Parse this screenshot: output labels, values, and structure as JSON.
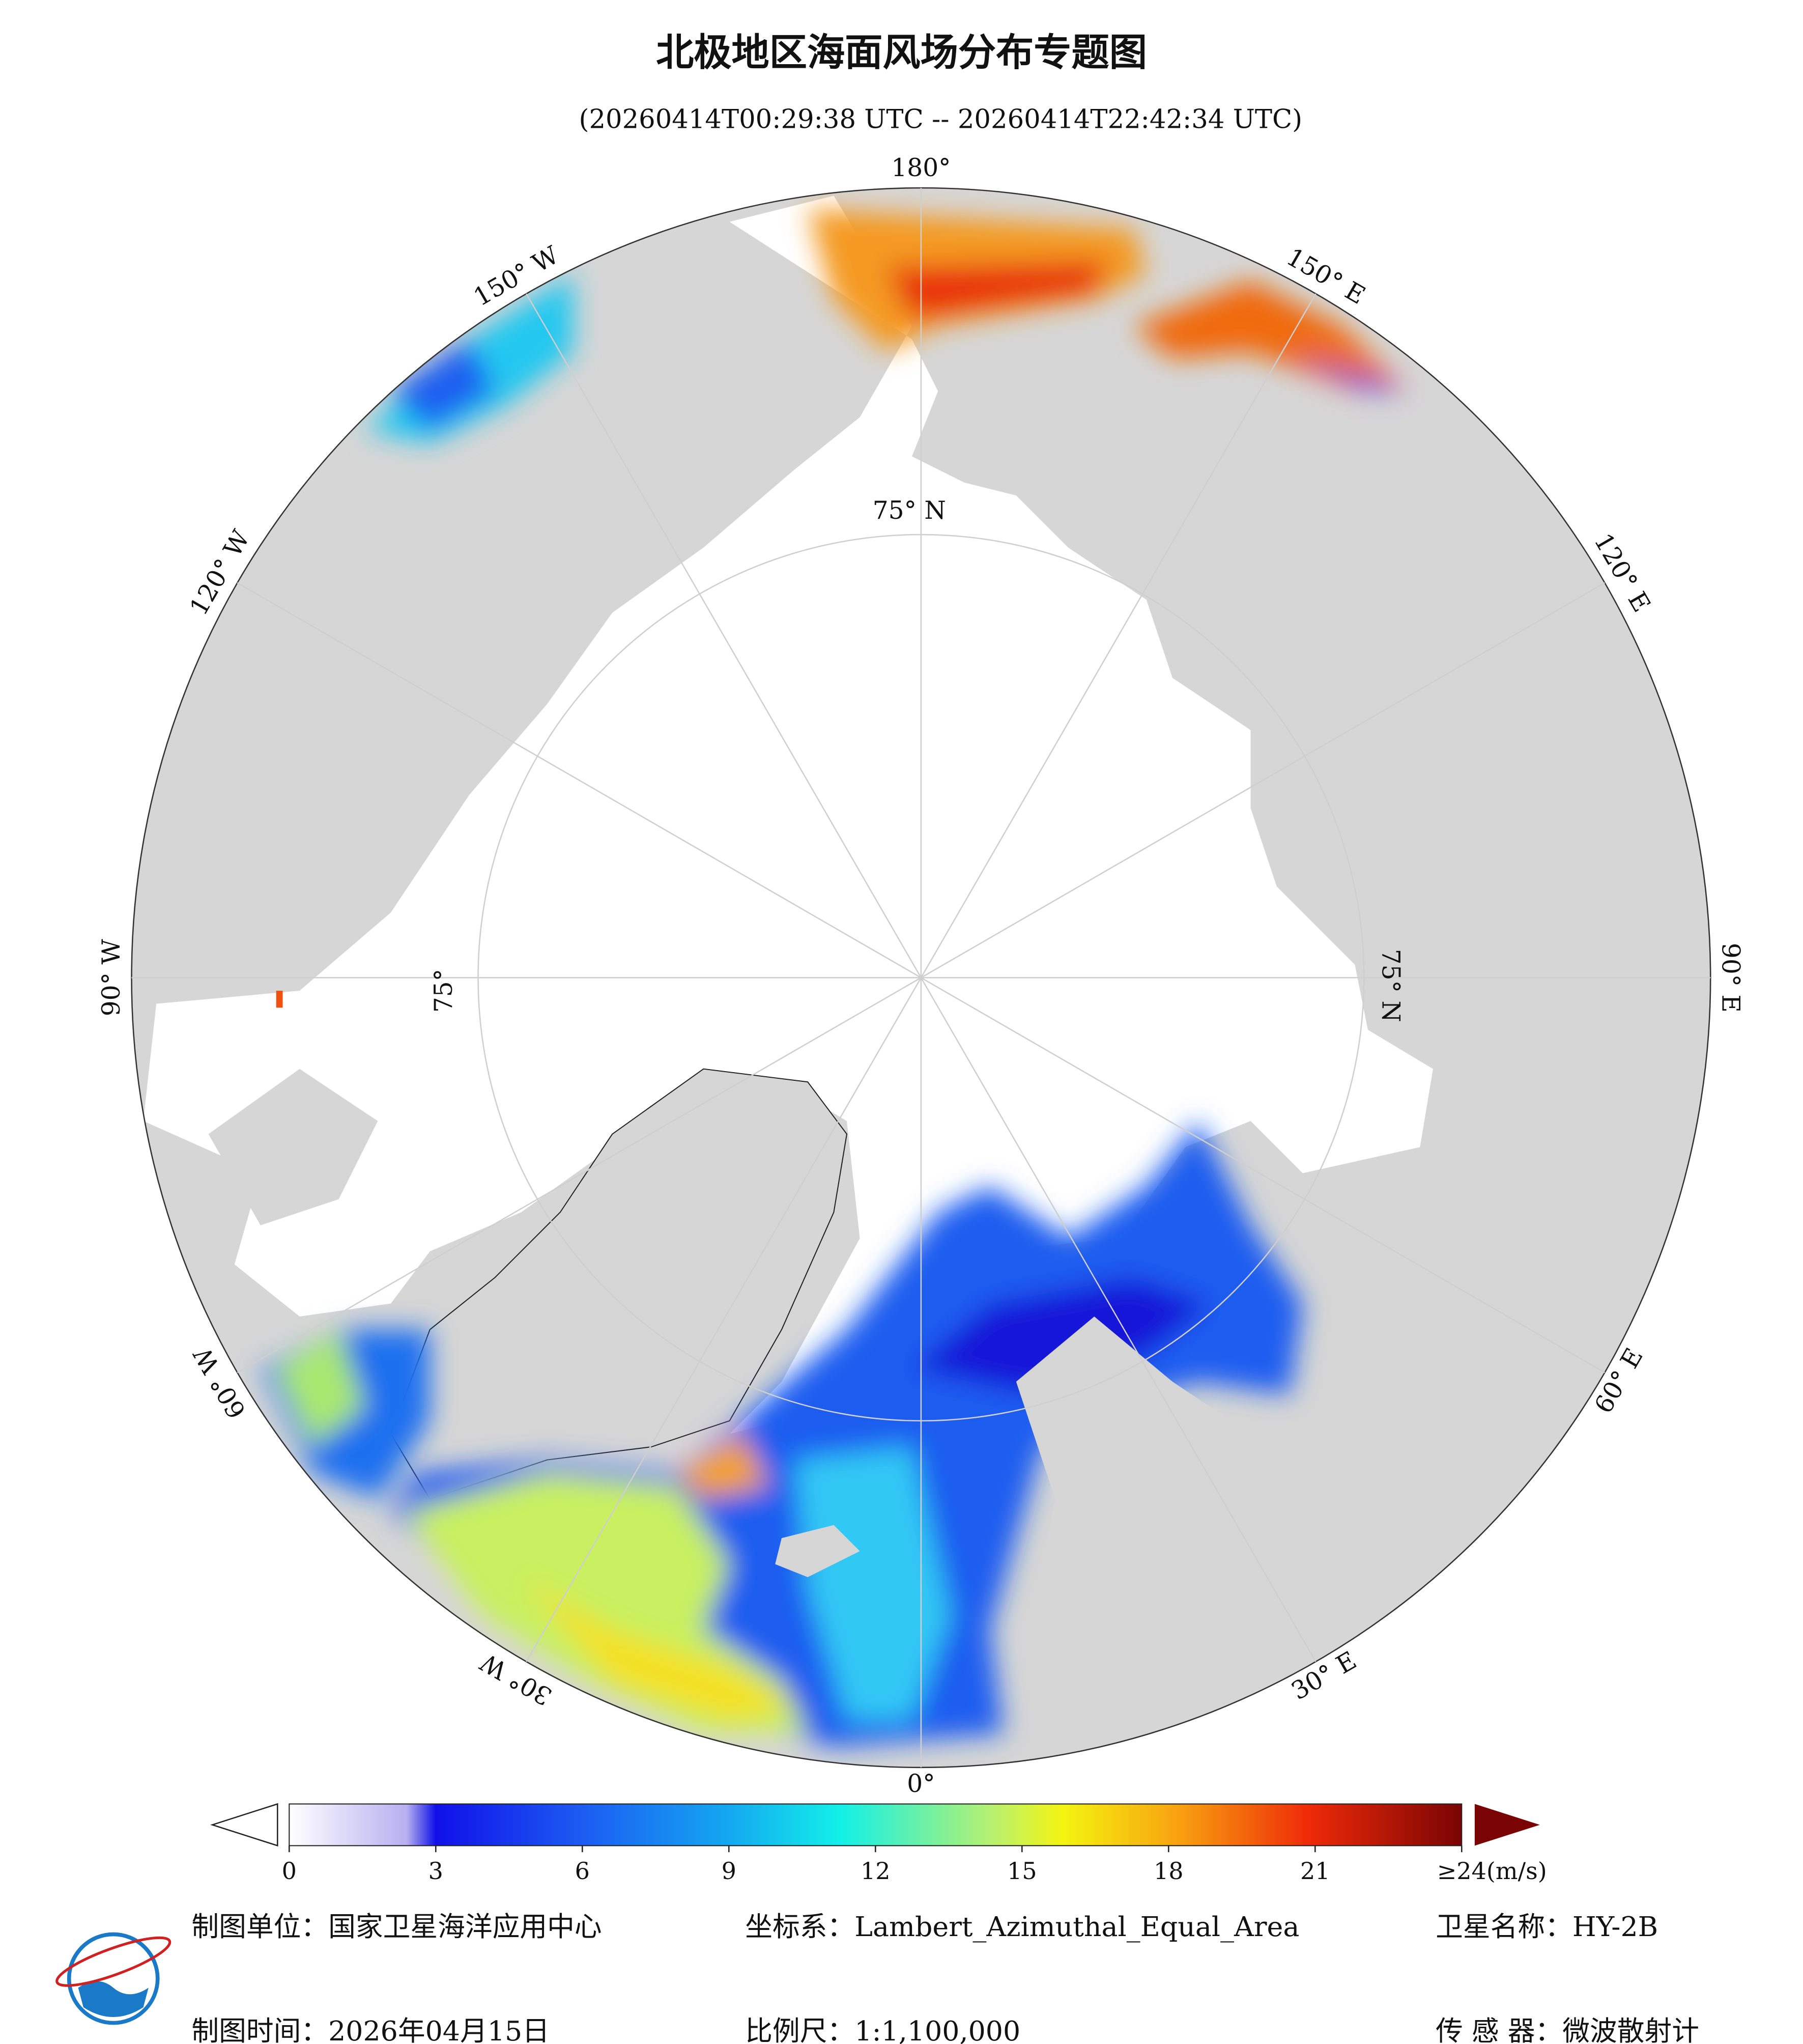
{
  "header": {
    "title": "北极地区海面风场分布专题图",
    "subtitle": "(20260414T00:29:38 UTC -- 20260414T22:42:34 UTC)"
  },
  "map": {
    "longitude_labels": [
      "180°",
      "150° E",
      "120° E",
      "90° E",
      "60° E",
      "30° E",
      "0°",
      "30° W",
      "60° W",
      "90° W",
      "120° W",
      "150° W"
    ],
    "latitude_labels": [
      "75° N",
      "75° N",
      "75°"
    ]
  },
  "colorbar": {
    "range": [
      0,
      24
    ],
    "ticks": [
      0,
      3,
      6,
      9,
      12,
      15,
      18,
      21,
      {
        "value": 24,
        "label": "≥24"
      }
    ],
    "unit": "(m/s)"
  },
  "footer": {
    "unit": "制图单位：国家卫星海洋应用中心",
    "coordinate_system": "坐标系：Lambert_Azimuthal_Equal_Area",
    "satellite": "卫星名称：HY-2B",
    "date": "制图时间：2026年04月15日",
    "scale": "比例尺：1:1,100,000",
    "sensor": "传 感 器：微波散射计"
  }
}
